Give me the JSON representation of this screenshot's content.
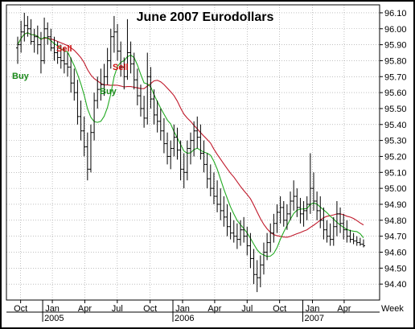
{
  "chart_data": {
    "type": "bar",
    "title": "June 2007 Eurodollars",
    "ylim": [
      94.3,
      96.15
    ],
    "y_ticks": [
      "96.10",
      "96.00",
      "95.90",
      "95.80",
      "95.70",
      "95.60",
      "95.50",
      "95.40",
      "95.30",
      "95.20",
      "95.10",
      "95.00",
      "94.90",
      "94.80",
      "94.70",
      "94.60",
      "94.50",
      "94.40"
    ],
    "x_ticks": [
      "Oct",
      "Jan",
      "Apr",
      "Jul",
      "Oct",
      "Jan",
      "Apr",
      "Jul",
      "Oct",
      "Jan",
      "Apr"
    ],
    "x_years": [
      "2005",
      "2006",
      "2007"
    ],
    "x_period": "Week",
    "grid": true,
    "annotations": [
      {
        "label": "Buy",
        "color": "#1a8a1a"
      },
      {
        "label": "Sell",
        "color": "#cc1111"
      },
      {
        "label": "Buy",
        "color": "#1a8a1a"
      },
      {
        "label": "Sell",
        "color": "#cc1111"
      }
    ],
    "series": [
      {
        "type": "ohlc",
        "color": "#000000",
        "values": [
          [
            95.88,
            95.95,
            95.78,
            95.9
          ],
          [
            95.9,
            96.05,
            95.85,
            95.98
          ],
          [
            95.98,
            96.1,
            95.92,
            96.02
          ],
          [
            96.02,
            96.08,
            95.95,
            96.0
          ],
          [
            96.0,
            96.06,
            95.9,
            95.92
          ],
          [
            95.92,
            96.0,
            95.85,
            95.95
          ],
          [
            95.95,
            96.02,
            95.84,
            95.9
          ],
          [
            95.9,
            95.98,
            95.72,
            95.8
          ],
          [
            95.8,
            96.07,
            95.78,
            96.0
          ],
          [
            96.0,
            96.04,
            95.9,
            95.95
          ],
          [
            95.95,
            96.0,
            95.86,
            95.88
          ],
          [
            95.88,
            95.95,
            95.8,
            95.85
          ],
          [
            95.85,
            95.92,
            95.78,
            95.82
          ],
          [
            95.82,
            95.9,
            95.75,
            95.8
          ],
          [
            95.8,
            95.88,
            95.72,
            95.78
          ],
          [
            95.78,
            95.85,
            95.7,
            95.76
          ],
          [
            95.76,
            95.82,
            95.6,
            95.66
          ],
          [
            95.66,
            95.75,
            95.55,
            95.6
          ],
          [
            95.6,
            95.68,
            95.4,
            95.45
          ],
          [
            95.45,
            95.55,
            95.3,
            95.36
          ],
          [
            95.36,
            95.45,
            95.2,
            95.26
          ],
          [
            95.26,
            95.35,
            95.05,
            95.12
          ],
          [
            95.12,
            95.4,
            95.1,
            95.35
          ],
          [
            95.35,
            95.6,
            95.3,
            95.55
          ],
          [
            95.55,
            95.7,
            95.5,
            95.62
          ],
          [
            95.62,
            95.75,
            95.55,
            95.65
          ],
          [
            95.65,
            95.78,
            95.58,
            95.7
          ],
          [
            95.7,
            95.88,
            95.65,
            95.8
          ],
          [
            95.8,
            96.0,
            95.75,
            95.95
          ],
          [
            95.95,
            96.08,
            95.85,
            95.98
          ],
          [
            95.98,
            96.03,
            95.8,
            95.86
          ],
          [
            95.86,
            95.92,
            95.7,
            95.76
          ],
          [
            95.76,
            95.82,
            95.62,
            95.7
          ],
          [
            95.7,
            96.06,
            95.68,
            95.85
          ],
          [
            95.85,
            95.92,
            95.72,
            95.78
          ],
          [
            95.78,
            95.85,
            95.62,
            95.68
          ],
          [
            95.68,
            95.75,
            95.52,
            95.58
          ],
          [
            95.58,
            95.65,
            95.45,
            95.5
          ],
          [
            95.5,
            95.58,
            95.38,
            95.44
          ],
          [
            95.44,
            95.85,
            95.4,
            95.7
          ],
          [
            95.7,
            95.76,
            95.5,
            95.56
          ],
          [
            95.56,
            95.62,
            95.4,
            95.46
          ],
          [
            95.46,
            95.55,
            95.35,
            95.42
          ],
          [
            95.42,
            95.5,
            95.3,
            95.36
          ],
          [
            95.36,
            95.44,
            95.22,
            95.28
          ],
          [
            95.28,
            95.35,
            95.15,
            95.2
          ],
          [
            95.2,
            95.3,
            95.12,
            95.25
          ],
          [
            95.25,
            95.4,
            95.2,
            95.32
          ],
          [
            95.32,
            95.38,
            95.18,
            95.24
          ],
          [
            95.24,
            95.3,
            95.05,
            95.12
          ],
          [
            95.12,
            95.22,
            95.0,
            95.1
          ],
          [
            95.1,
            95.3,
            95.05,
            95.25
          ],
          [
            95.25,
            95.35,
            95.15,
            95.3
          ],
          [
            95.3,
            95.42,
            95.2,
            95.36
          ],
          [
            95.36,
            95.45,
            95.25,
            95.32
          ],
          [
            95.32,
            95.4,
            95.18,
            95.22
          ],
          [
            95.22,
            95.3,
            95.1,
            95.15
          ],
          [
            95.15,
            95.22,
            95.0,
            95.06
          ],
          [
            95.06,
            95.15,
            94.95,
            95.0
          ],
          [
            95.0,
            95.1,
            94.9,
            94.95
          ],
          [
            94.95,
            95.05,
            94.85,
            94.9
          ],
          [
            94.9,
            95.0,
            94.8,
            94.86
          ],
          [
            94.86,
            94.95,
            94.76,
            94.82
          ],
          [
            94.82,
            94.9,
            94.7,
            94.76
          ],
          [
            94.76,
            94.85,
            94.68,
            94.72
          ],
          [
            94.72,
            94.8,
            94.66,
            94.7
          ],
          [
            94.7,
            94.78,
            94.62,
            94.68
          ],
          [
            94.68,
            94.8,
            94.64,
            94.74
          ],
          [
            94.74,
            94.82,
            94.66,
            94.7
          ],
          [
            94.7,
            94.76,
            94.58,
            94.64
          ],
          [
            94.64,
            94.72,
            94.5,
            94.56
          ],
          [
            94.56,
            94.62,
            94.4,
            94.46
          ],
          [
            94.46,
            94.55,
            94.35,
            94.44
          ],
          [
            94.44,
            94.58,
            94.38,
            94.52
          ],
          [
            94.52,
            94.66,
            94.46,
            94.6
          ],
          [
            94.6,
            94.72,
            94.55,
            94.66
          ],
          [
            94.66,
            94.78,
            94.6,
            94.72
          ],
          [
            94.72,
            94.84,
            94.66,
            94.78
          ],
          [
            94.78,
            94.9,
            94.72,
            94.85
          ],
          [
            94.85,
            94.95,
            94.78,
            94.88
          ],
          [
            94.88,
            94.92,
            94.76,
            94.8
          ],
          [
            94.8,
            94.9,
            94.74,
            94.84
          ],
          [
            94.84,
            94.98,
            94.8,
            94.92
          ],
          [
            94.92,
            95.05,
            94.86,
            94.95
          ],
          [
            94.95,
            95.0,
            94.82,
            94.88
          ],
          [
            94.88,
            94.94,
            94.78,
            94.84
          ],
          [
            94.84,
            94.92,
            94.76,
            94.86
          ],
          [
            94.86,
            94.95,
            94.8,
            94.9
          ],
          [
            94.9,
            95.22,
            94.84,
            95.0
          ],
          [
            95.0,
            95.1,
            94.86,
            94.92
          ],
          [
            94.92,
            94.98,
            94.8,
            94.86
          ],
          [
            94.86,
            94.95,
            94.75,
            94.8
          ],
          [
            94.8,
            94.88,
            94.68,
            94.74
          ],
          [
            94.74,
            94.8,
            94.66,
            94.7
          ],
          [
            94.7,
            94.78,
            94.64,
            94.68
          ],
          [
            94.68,
            94.82,
            94.64,
            94.76
          ],
          [
            94.76,
            94.92,
            94.7,
            94.84
          ],
          [
            94.84,
            94.88,
            94.72,
            94.78
          ],
          [
            94.78,
            94.84,
            94.68,
            94.74
          ],
          [
            94.74,
            94.8,
            94.66,
            94.7
          ],
          [
            94.7,
            94.74,
            94.66,
            94.68
          ],
          [
            94.68,
            94.72,
            94.65,
            94.67
          ],
          [
            94.67,
            94.7,
            94.64,
            94.66
          ],
          [
            94.66,
            94.69,
            94.64,
            94.65
          ],
          [
            94.65,
            94.68,
            94.63,
            94.64
          ]
        ]
      },
      {
        "type": "line",
        "color": "#22aa22",
        "period": 8
      },
      {
        "type": "line",
        "color": "#c0182a",
        "period": 20
      }
    ]
  }
}
